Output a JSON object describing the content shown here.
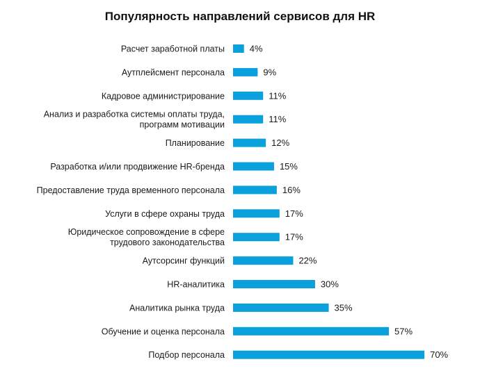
{
  "chart_data": {
    "type": "bar",
    "orientation": "horizontal",
    "title": "Популярность направлений сервисов для HR",
    "bar_color": "#0aa0dc",
    "xlim": [
      0,
      70
    ],
    "grid": false,
    "legend": "none",
    "categories": [
      [
        "Расчет заработной платы"
      ],
      [
        "Аутплейсмент персонала"
      ],
      [
        "Кадровое администрирование"
      ],
      [
        "Анализ и разработка системы оплаты труда,",
        "программ мотивации"
      ],
      [
        "Планирование"
      ],
      [
        "Разработка и/или продвижение HR-бренда"
      ],
      [
        "Предоставление труда временного персонала"
      ],
      [
        "Услуги в сфере охраны труда"
      ],
      [
        "Юридическое сопровождение в сфере",
        "трудового законодательства"
      ],
      [
        "Аутсорсинг функций"
      ],
      [
        "HR-аналитика"
      ],
      [
        "Аналитика рынка труда"
      ],
      [
        "Обучение и оценка персонала"
      ],
      [
        "Подбор персонала"
      ]
    ],
    "values": [
      4,
      9,
      11,
      11,
      12,
      15,
      16,
      17,
      17,
      22,
      30,
      35,
      57,
      70
    ],
    "value_labels": [
      "4%",
      "9%",
      "11%",
      "11%",
      "12%",
      "15%",
      "16%",
      "17%",
      "17%",
      "22%",
      "30%",
      "35%",
      "57%",
      "70%"
    ]
  }
}
